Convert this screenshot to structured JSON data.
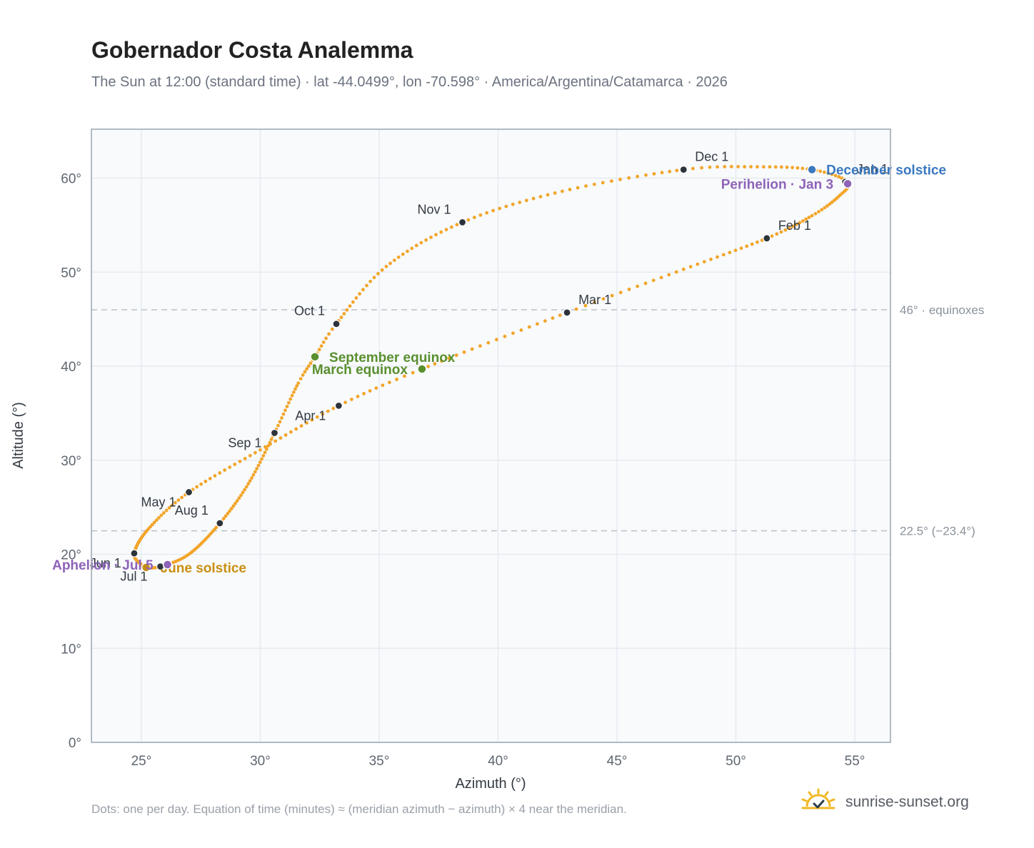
{
  "title": "Gobernador Costa Analemma",
  "subtitle": "The Sun at 12:00 (standard time) · lat -44.0499°, lon -70.598° · America/Argentina/Catamarca · 2026",
  "footnote": "Dots: one per day. Equation of time (minutes) ≈ (meridian azimuth − azimuth) × 4 near the meridian.",
  "brand": {
    "name": "sunrise-sunset.org",
    "icon": "sun-logo-icon"
  },
  "colors": {
    "curve": "#f2a52a",
    "month_marker": "#2d333b",
    "equinox": "#5a8f2e",
    "december_solstice": "#3a78c0",
    "june_solstice": "#c98f12",
    "apsides": "#8e63b8",
    "plot_background": "#f8fafc",
    "grid": "#e3e8ee",
    "reference_line": "#b8c2cc"
  },
  "chart_data": {
    "type": "scatter",
    "title": "Gobernador Costa Analemma",
    "xlabel": "Azimuth (°)",
    "ylabel": "Altitude (°)",
    "xlim": [
      22.9,
      56.5
    ],
    "ylim": [
      0,
      65.2
    ],
    "x_ticks": [
      25,
      30,
      35,
      40,
      45,
      50,
      55
    ],
    "y_ticks": [
      0,
      10,
      20,
      30,
      40,
      50,
      60
    ],
    "x_tick_suffix": "°",
    "y_tick_suffix": "°",
    "grid": true,
    "reference_lines": [
      {
        "y": 46,
        "label": "46° · equinoxes"
      },
      {
        "y": 22.5,
        "label": "22.5° (−23.4°)"
      }
    ],
    "path_keypoints": [
      {
        "day": 1,
        "az": 54.7,
        "alt": 59.6
      },
      {
        "day": 10,
        "az": 54.3,
        "alt": 58.0
      },
      {
        "day": 20,
        "az": 53.2,
        "alt": 56.0
      },
      {
        "day": 32,
        "az": 51.3,
        "alt": 53.6
      },
      {
        "day": 46,
        "az": 47.8,
        "alt": 50.3
      },
      {
        "day": 60,
        "az": 42.9,
        "alt": 45.7
      },
      {
        "day": 79,
        "az": 36.8,
        "alt": 39.7
      },
      {
        "day": 91,
        "az": 33.3,
        "alt": 35.8
      },
      {
        "day": 106,
        "az": 30.0,
        "alt": 31.1
      },
      {
        "day": 121,
        "az": 27.0,
        "alt": 26.6
      },
      {
        "day": 136,
        "az": 25.3,
        "alt": 22.7
      },
      {
        "day": 152,
        "az": 24.7,
        "alt": 20.1
      },
      {
        "day": 163,
        "az": 25.0,
        "alt": 18.9
      },
      {
        "day": 172,
        "az": 25.2,
        "alt": 18.6
      },
      {
        "day": 182,
        "az": 25.8,
        "alt": 18.7
      },
      {
        "day": 196,
        "az": 27.0,
        "alt": 20.0
      },
      {
        "day": 213,
        "az": 28.3,
        "alt": 23.3
      },
      {
        "day": 228,
        "az": 29.5,
        "alt": 27.5
      },
      {
        "day": 244,
        "az": 30.6,
        "alt": 32.9
      },
      {
        "day": 258,
        "az": 31.6,
        "alt": 38.2
      },
      {
        "day": 266,
        "az": 32.3,
        "alt": 41.0
      },
      {
        "day": 274,
        "az": 33.2,
        "alt": 44.5
      },
      {
        "day": 289,
        "az": 35.3,
        "alt": 50.6
      },
      {
        "day": 305,
        "az": 38.5,
        "alt": 55.3
      },
      {
        "day": 320,
        "az": 42.7,
        "alt": 58.6
      },
      {
        "day": 335,
        "az": 47.8,
        "alt": 60.9
      },
      {
        "day": 345,
        "az": 50.9,
        "alt": 61.2
      },
      {
        "day": 355,
        "az": 53.2,
        "alt": 60.9
      },
      {
        "day": 366,
        "az": 54.7,
        "alt": 59.6
      }
    ],
    "month_markers": [
      {
        "label": "Jan 1",
        "az": 54.6,
        "alt": 59.6,
        "anchor": "ne"
      },
      {
        "label": "Feb 1",
        "az": 51.3,
        "alt": 53.6,
        "anchor": "ne"
      },
      {
        "label": "Mar 1",
        "az": 42.9,
        "alt": 45.7,
        "anchor": "ne"
      },
      {
        "label": "Apr 1",
        "az": 33.3,
        "alt": 35.8,
        "anchor": "sw"
      },
      {
        "label": "May 1",
        "az": 27.0,
        "alt": 26.6,
        "anchor": "sw"
      },
      {
        "label": "Jun 1",
        "az": 24.7,
        "alt": 20.1,
        "anchor": "sw"
      },
      {
        "label": "Jul 1",
        "az": 25.8,
        "alt": 18.7,
        "anchor": "sw"
      },
      {
        "label": "Aug 1",
        "az": 28.3,
        "alt": 23.3,
        "anchor": "nw"
      },
      {
        "label": "Sep 1",
        "az": 30.6,
        "alt": 32.9,
        "anchor": "sw"
      },
      {
        "label": "Oct 1",
        "az": 33.2,
        "alt": 44.5,
        "anchor": "nw"
      },
      {
        "label": "Nov 1",
        "az": 38.5,
        "alt": 55.3,
        "anchor": "nw"
      },
      {
        "label": "Dec 1",
        "az": 47.8,
        "alt": 60.9,
        "anchor": "ne"
      }
    ],
    "events": [
      {
        "label": "December solstice",
        "az": 53.2,
        "alt": 60.9,
        "color": "december_solstice",
        "anchor": "e"
      },
      {
        "label": "March equinox",
        "az": 36.8,
        "alt": 39.7,
        "color": "equinox",
        "anchor": "w"
      },
      {
        "label": "June solstice",
        "az": 25.2,
        "alt": 18.6,
        "color": "june_solstice",
        "anchor": "e"
      },
      {
        "label": "September equinox",
        "az": 32.3,
        "alt": 41.0,
        "color": "equinox",
        "anchor": "e"
      },
      {
        "label": "Perihelion · Jan 3",
        "az": 54.7,
        "alt": 59.4,
        "color": "apsides",
        "anchor": "w"
      },
      {
        "label": "Aphelion · Jul 5",
        "az": 26.1,
        "alt": 18.9,
        "color": "apsides",
        "anchor": "w"
      }
    ]
  }
}
